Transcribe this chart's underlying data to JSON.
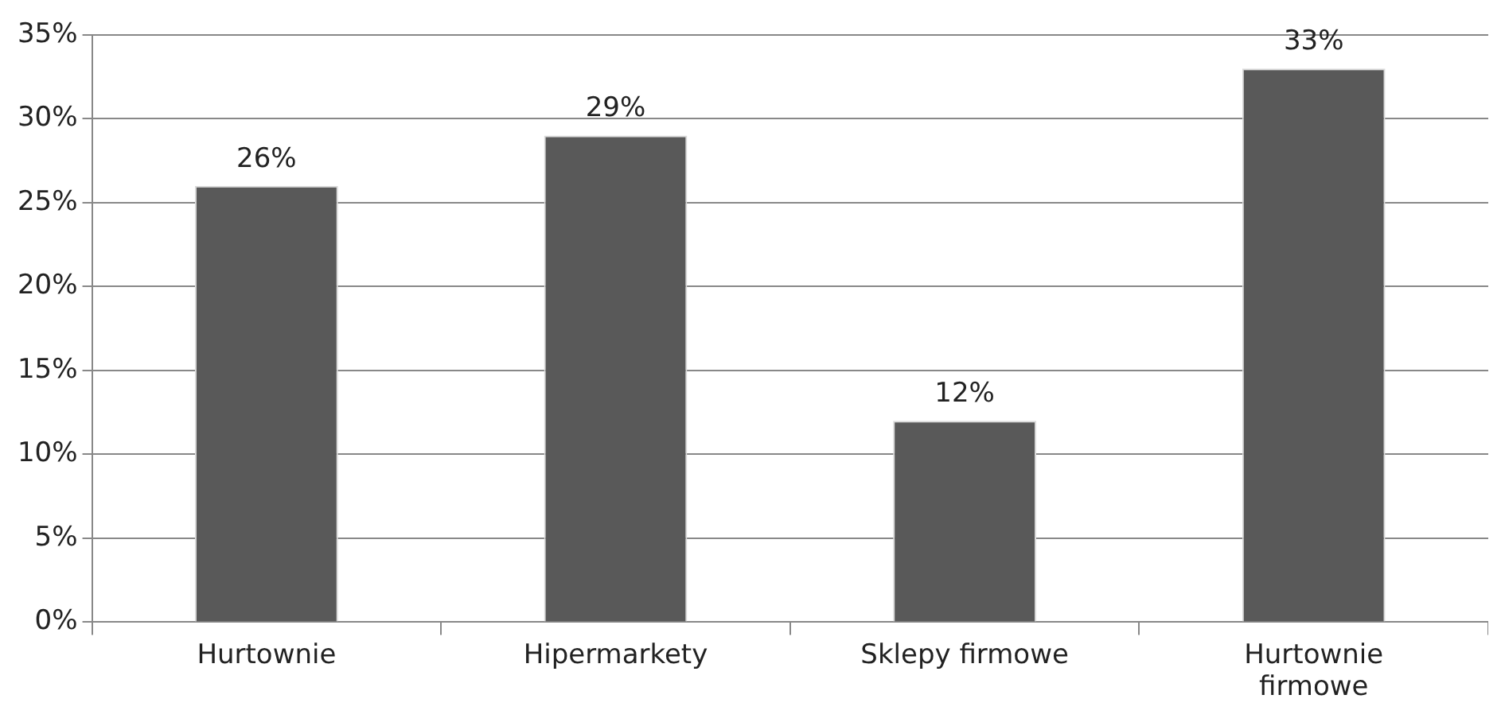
{
  "chart_data": {
    "type": "bar",
    "categories": [
      "Hurtownie",
      "Hipermarkety",
      "Sklepy firmowe",
      "Hurtownie firmowe"
    ],
    "values": [
      26,
      29,
      12,
      33
    ],
    "color": "#595959",
    "value_labels": [
      "26%",
      "29%",
      "12%",
      "33%"
    ],
    "ylim": [
      0,
      35
    ],
    "yticks": [
      {
        "value": 0,
        "label": "0%"
      },
      {
        "value": 5,
        "label": "5%"
      },
      {
        "value": 10,
        "label": "10%"
      },
      {
        "value": 15,
        "label": "15%"
      },
      {
        "value": 20,
        "label": "20%"
      },
      {
        "value": 25,
        "label": "25%"
      },
      {
        "value": 30,
        "label": "30%"
      },
      {
        "value": 35,
        "label": "35%"
      }
    ],
    "grid": "y",
    "legend": false
  }
}
